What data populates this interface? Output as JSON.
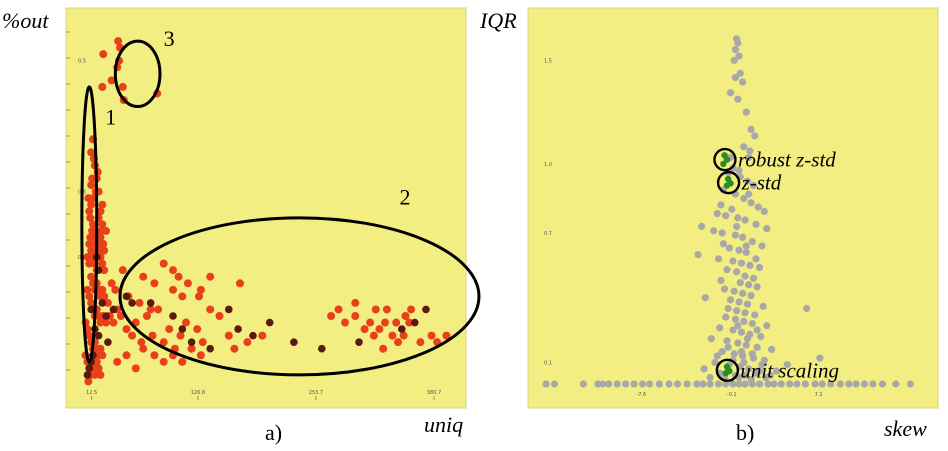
{
  "chart_data": [
    {
      "type": "scatter",
      "panel_label": "a)",
      "xlabel": "uniq",
      "ylabel": "%out",
      "background": "#f2ee82",
      "xticks": [
        "12.5",
        "126.8",
        "253.7",
        "380.7"
      ],
      "yticks": [
        "0.5",
        "0.3",
        "0.2"
      ],
      "xlim": [
        0,
        400
      ],
      "ylim": [
        0,
        0.55
      ],
      "point_color": "#e8401a",
      "dark_point_color": "#5a1a10",
      "clusters": [
        {
          "label": "1",
          "center": [
            10,
            0.25
          ],
          "radius": [
            8,
            0.21
          ]
        },
        {
          "label": "2",
          "center": [
            236,
            0.14
          ],
          "radius": [
            193,
            0.12
          ]
        },
        {
          "label": "3",
          "center": [
            62,
            0.48
          ],
          "radius": [
            24,
            0.05
          ]
        }
      ],
      "points": [
        [
          25,
          0.51
        ],
        [
          41,
          0.53
        ],
        [
          43,
          0.52
        ],
        [
          42,
          0.5
        ],
        [
          40,
          0.49
        ],
        [
          34,
          0.47
        ],
        [
          46,
          0.46
        ],
        [
          83,
          0.45
        ],
        [
          24,
          0.46
        ],
        [
          47,
          0.44
        ],
        [
          9,
          0.29
        ],
        [
          10,
          0.27
        ],
        [
          11,
          0.26
        ],
        [
          12,
          0.28
        ],
        [
          13,
          0.24
        ],
        [
          14,
          0.25
        ],
        [
          15,
          0.23
        ],
        [
          17,
          0.22
        ],
        [
          19,
          0.21
        ],
        [
          21,
          0.22
        ],
        [
          10,
          0.22
        ],
        [
          12,
          0.21
        ],
        [
          14,
          0.2
        ],
        [
          16,
          0.19
        ],
        [
          18,
          0.2
        ],
        [
          20,
          0.21
        ],
        [
          22,
          0.2
        ],
        [
          24,
          0.19
        ],
        [
          26,
          0.18
        ],
        [
          18,
          0.18
        ],
        [
          8,
          0.2
        ],
        [
          10,
          0.19
        ],
        [
          12,
          0.17
        ],
        [
          14,
          0.16
        ],
        [
          16,
          0.15
        ],
        [
          18,
          0.16
        ],
        [
          20,
          0.15
        ],
        [
          22,
          0.14
        ],
        [
          24,
          0.15
        ],
        [
          26,
          0.14
        ],
        [
          8,
          0.15
        ],
        [
          10,
          0.14
        ],
        [
          12,
          0.13
        ],
        [
          14,
          0.12
        ],
        [
          16,
          0.11
        ],
        [
          18,
          0.12
        ],
        [
          20,
          0.11
        ],
        [
          22,
          0.1
        ],
        [
          24,
          0.11
        ],
        [
          28,
          0.1
        ],
        [
          6,
          0.1
        ],
        [
          8,
          0.09
        ],
        [
          10,
          0.08
        ],
        [
          12,
          0.07
        ],
        [
          14,
          0.06
        ],
        [
          16,
          0.07
        ],
        [
          18,
          0.06
        ],
        [
          20,
          0.05
        ],
        [
          22,
          0.06
        ],
        [
          24,
          0.05
        ],
        [
          6,
          0.05
        ],
        [
          8,
          0.04
        ],
        [
          10,
          0.03
        ],
        [
          12,
          0.02
        ],
        [
          14,
          0.03
        ],
        [
          16,
          0.02
        ],
        [
          18,
          0.04
        ],
        [
          20,
          0.03
        ],
        [
          22,
          0.02
        ],
        [
          9,
          0.01
        ],
        [
          32,
          0.11
        ],
        [
          36,
          0.1
        ],
        [
          40,
          0.12
        ],
        [
          44,
          0.11
        ],
        [
          50,
          0.09
        ],
        [
          56,
          0.08
        ],
        [
          60,
          0.1
        ],
        [
          66,
          0.07
        ],
        [
          72,
          0.11
        ],
        [
          78,
          0.08
        ],
        [
          84,
          0.12
        ],
        [
          90,
          0.07
        ],
        [
          96,
          0.09
        ],
        [
          102,
          0.06
        ],
        [
          108,
          0.08
        ],
        [
          114,
          0.1
        ],
        [
          120,
          0.06
        ],
        [
          126,
          0.09
        ],
        [
          132,
          0.07
        ],
        [
          140,
          0.12
        ],
        [
          64,
          0.13
        ],
        [
          76,
          0.12
        ],
        [
          100,
          0.15
        ],
        [
          110,
          0.14
        ],
        [
          130,
          0.15
        ],
        [
          150,
          0.11
        ],
        [
          160,
          0.08
        ],
        [
          166,
          0.06
        ],
        [
          180,
          0.07
        ],
        [
          196,
          0.08
        ],
        [
          40,
          0.04
        ],
        [
          50,
          0.05
        ],
        [
          60,
          0.03
        ],
        [
          68,
          0.06
        ],
        [
          80,
          0.05
        ],
        [
          90,
          0.04
        ],
        [
          100,
          0.05
        ],
        [
          110,
          0.04
        ],
        [
          120,
          0.06
        ],
        [
          130,
          0.05
        ],
        [
          106,
          0.17
        ],
        [
          116,
          0.16
        ],
        [
          128,
          0.14
        ],
        [
          140,
          0.17
        ],
        [
          172,
          0.16
        ],
        [
          34,
          0.16
        ],
        [
          46,
          0.18
        ],
        [
          30,
          0.13
        ],
        [
          38,
          0.15
        ],
        [
          52,
          0.14
        ],
        [
          90,
          0.19
        ],
        [
          100,
          0.18
        ],
        [
          68,
          0.17
        ],
        [
          80,
          0.16
        ],
        [
          20,
          0.26
        ],
        [
          24,
          0.25
        ],
        [
          28,
          0.24
        ],
        [
          22,
          0.23
        ],
        [
          26,
          0.21
        ],
        [
          24,
          0.28
        ],
        [
          270,
          0.11
        ],
        [
          285,
          0.1
        ],
        [
          296,
          0.11
        ],
        [
          306,
          0.09
        ],
        [
          316,
          0.08
        ],
        [
          322,
          0.09
        ],
        [
          328,
          0.1
        ],
        [
          336,
          0.08
        ],
        [
          342,
          0.07
        ],
        [
          348,
          0.08
        ],
        [
          354,
          0.1
        ],
        [
          318,
          0.12
        ],
        [
          296,
          0.13
        ],
        [
          330,
          0.12
        ],
        [
          350,
          0.11
        ],
        [
          356,
          0.12
        ],
        [
          366,
          0.07
        ],
        [
          378,
          0.08
        ],
        [
          384,
          0.07
        ],
        [
          278,
          0.12
        ],
        [
          312,
          0.1
        ],
        [
          340,
          0.1
        ],
        [
          326,
          0.06
        ],
        [
          394,
          0.08
        ],
        [
          12,
          0.36
        ],
        [
          14,
          0.38
        ],
        [
          16,
          0.34
        ],
        [
          18,
          0.32
        ],
        [
          20,
          0.3
        ],
        [
          13,
          0.32
        ],
        [
          15,
          0.35
        ],
        [
          17,
          0.3
        ],
        [
          19,
          0.33
        ],
        [
          12,
          0.31
        ],
        [
          14,
          0.29
        ],
        [
          22,
          0.27
        ],
        [
          11,
          0.23
        ],
        [
          23,
          0.24
        ],
        [
          25,
          0.22
        ]
      ],
      "dark_points": [
        [
          18,
          0.2
        ],
        [
          20,
          0.18
        ],
        [
          12,
          0.12
        ],
        [
          24,
          0.13
        ],
        [
          28,
          0.11
        ],
        [
          16,
          0.09
        ],
        [
          14,
          0.05
        ],
        [
          10,
          0.03
        ],
        [
          8,
          0.02
        ],
        [
          12,
          0.04
        ],
        [
          20,
          0.08
        ],
        [
          30,
          0.07
        ],
        [
          36,
          0.12
        ],
        [
          50,
          0.14
        ],
        [
          56,
          0.13
        ],
        [
          76,
          0.13
        ],
        [
          100,
          0.11
        ],
        [
          110,
          0.09
        ],
        [
          120,
          0.07
        ],
        [
          140,
          0.06
        ],
        [
          160,
          0.12
        ],
        [
          170,
          0.09
        ],
        [
          186,
          0.08
        ],
        [
          204,
          0.1
        ],
        [
          230,
          0.07
        ],
        [
          260,
          0.06
        ],
        [
          300,
          0.07
        ],
        [
          346,
          0.09
        ],
        [
          360,
          0.1
        ],
        [
          372,
          0.12
        ]
      ]
    },
    {
      "type": "scatter",
      "panel_label": "b)",
      "xlabel": "skew",
      "ylabel": "IQR",
      "background": "#f2ee82",
      "xticks": [
        "-7.6",
        "-0.1",
        "7.1"
      ],
      "yticks": [
        "1.5",
        "1.0",
        "0.7",
        "0.1"
      ],
      "xlim": [
        -16,
        16
      ],
      "ylim": [
        0,
        1.65
      ],
      "point_color": "#a8a8a8",
      "highlight_color": "#2e8b1e",
      "points_gray": [
        [
          0.3,
          1.6
        ],
        [
          0.4,
          1.58
        ],
        [
          0.2,
          1.55
        ],
        [
          0.5,
          1.52
        ],
        [
          0.1,
          1.5
        ],
        [
          0.6,
          1.44
        ],
        [
          0.2,
          1.42
        ],
        [
          0.8,
          1.4
        ],
        [
          -0.2,
          1.35
        ],
        [
          0.4,
          1.32
        ],
        [
          1.1,
          1.26
        ],
        [
          1.5,
          1.18
        ],
        [
          1.8,
          1.15
        ],
        [
          0.9,
          1.1
        ],
        [
          1.3,
          1.05
        ],
        [
          0.0,
          1.0
        ],
        [
          -0.4,
          0.98
        ],
        [
          0.6,
          0.96
        ],
        [
          1.2,
          0.94
        ],
        [
          1.7,
          0.92
        ],
        [
          -0.8,
          0.9
        ],
        [
          0.2,
          0.88
        ],
        [
          0.9,
          0.86
        ],
        [
          1.5,
          0.84
        ],
        [
          2.1,
          0.82
        ],
        [
          2.6,
          0.8
        ],
        [
          -1.3,
          0.79
        ],
        [
          -0.6,
          0.78
        ],
        [
          0.4,
          0.77
        ],
        [
          1.0,
          0.76
        ],
        [
          1.9,
          0.74
        ],
        [
          2.8,
          0.72
        ],
        [
          -2.6,
          0.73
        ],
        [
          -1.6,
          0.71
        ],
        [
          -0.9,
          0.7
        ],
        [
          0.2,
          0.69
        ],
        [
          0.8,
          0.68
        ],
        [
          1.6,
          0.66
        ],
        [
          2.4,
          0.64
        ],
        [
          -0.3,
          0.63
        ],
        [
          0.5,
          0.62
        ],
        [
          1.1,
          0.61
        ],
        [
          -2.9,
          0.6
        ],
        [
          -1.2,
          0.58
        ],
        [
          0.0,
          0.57
        ],
        [
          0.7,
          0.56
        ],
        [
          1.4,
          0.55
        ],
        [
          2.2,
          0.54
        ],
        [
          -0.5,
          0.53
        ],
        [
          0.3,
          0.52
        ],
        [
          1.0,
          0.5
        ],
        [
          1.7,
          0.49
        ],
        [
          -1.0,
          0.48
        ],
        [
          0.6,
          0.47
        ],
        [
          1.3,
          0.46
        ],
        [
          2.0,
          0.45
        ],
        [
          -0.7,
          0.44
        ],
        [
          0.1,
          0.43
        ],
        [
          0.8,
          0.42
        ],
        [
          1.5,
          0.41
        ],
        [
          -2.3,
          0.4
        ],
        [
          -0.2,
          0.39
        ],
        [
          0.5,
          0.38
        ],
        [
          1.2,
          0.37
        ],
        [
          2.5,
          0.36
        ],
        [
          -0.4,
          0.35
        ],
        [
          0.3,
          0.34
        ],
        [
          1.0,
          0.33
        ],
        [
          6.1,
          0.35
        ],
        [
          1.8,
          0.32
        ],
        [
          -0.6,
          0.31
        ],
        [
          0.2,
          0.3
        ],
        [
          0.9,
          0.29
        ],
        [
          1.6,
          0.28
        ],
        [
          2.8,
          0.27
        ],
        [
          -1.1,
          0.26
        ],
        [
          0.0,
          0.25
        ],
        [
          0.7,
          0.24
        ],
        [
          1.4,
          0.23
        ],
        [
          2.3,
          0.22
        ],
        [
          -1.8,
          0.21
        ],
        [
          -0.5,
          0.2
        ],
        [
          0.4,
          0.19
        ],
        [
          1.1,
          0.18
        ],
        [
          2.0,
          0.17
        ],
        [
          3.2,
          0.16
        ],
        [
          -0.9,
          0.15
        ],
        [
          0.1,
          0.14
        ],
        [
          0.8,
          0.13
        ],
        [
          1.7,
          0.12
        ],
        [
          2.6,
          0.11
        ],
        [
          -1.5,
          0.1
        ],
        [
          -0.3,
          0.09
        ],
        [
          0.6,
          0.08
        ],
        [
          1.3,
          0.07
        ],
        [
          2.2,
          0.06
        ],
        [
          4.5,
          0.09
        ],
        [
          7.2,
          0.12
        ],
        [
          -2.4,
          0.07
        ],
        [
          3.6,
          0.06
        ],
        [
          -1.1,
          0.05
        ],
        [
          0.2,
          0.04
        ],
        [
          1.0,
          0.04
        ],
        [
          1.9,
          0.05
        ],
        [
          3.1,
          0.04
        ],
        [
          -0.7,
          0.03
        ],
        [
          0.5,
          0.03
        ],
        [
          1.5,
          0.02
        ],
        [
          -1.9,
          0.03
        ],
        [
          2.7,
          0.03
        ],
        [
          -0.2,
          1.05
        ],
        [
          0.5,
          0.99
        ],
        [
          1.4,
          1.08
        ],
        [
          -1.0,
          0.83
        ],
        [
          -0.1,
          0.81
        ],
        [
          1.3,
          0.88
        ],
        [
          0.3,
          0.73
        ],
        [
          1.1,
          0.64
        ],
        [
          -0.8,
          0.65
        ],
        [
          1.9,
          0.58
        ],
        [
          0.0,
          0.11
        ],
        [
          0.7,
          0.15
        ],
        [
          1.2,
          0.21
        ],
        [
          -0.4,
          0.17
        ],
        [
          2.0,
          0.25
        ],
        [
          0.4,
          0.27
        ],
        [
          1.6,
          0.14
        ],
        [
          -1.3,
          0.13
        ],
        [
          0.9,
          0.1
        ],
        [
          2.4,
          0.09
        ]
      ],
      "baseline_points": [
        -15.5,
        -14.8,
        -12.4,
        -11.2,
        -10.8,
        -10.3,
        -9.6,
        -8.9,
        -8.2,
        -7.5,
        -6.9,
        -6.1,
        -5.3,
        -4.6,
        -3.8,
        -3.0,
        -2.5,
        -1.9,
        -1.2,
        -0.6,
        0.0,
        0.5,
        1.0,
        1.6,
        2.2,
        2.9,
        3.4,
        4.0,
        4.7,
        5.3,
        6.0,
        6.8,
        7.4,
        8.1,
        8.9,
        9.6,
        10.2,
        10.9,
        11.6,
        12.4,
        13.5,
        14.7
      ],
      "highlighted": [
        {
          "label": "robust z-std",
          "points": [
            [
              -0.7,
              1.06
            ],
            [
              -0.5,
              1.04
            ],
            [
              -0.8,
              1.02
            ]
          ]
        },
        {
          "label": "z-std",
          "points": [
            [
              -0.4,
              0.95
            ],
            [
              -0.2,
              0.93
            ],
            [
              -0.5,
              0.92
            ]
          ]
        },
        {
          "label": "unit scaling",
          "points": [
            [
              -0.5,
              0.08
            ],
            [
              -0.3,
              0.06
            ],
            [
              -0.6,
              0.05
            ]
          ]
        }
      ]
    }
  ]
}
